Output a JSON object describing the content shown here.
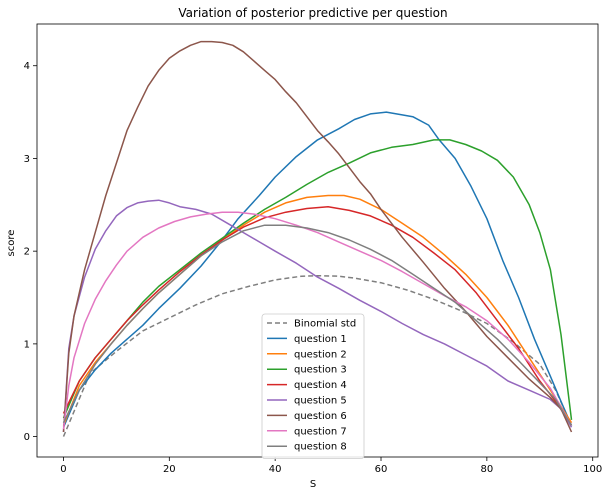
{
  "chart_data": {
    "type": "line",
    "title": "Variation of posterior predictive per question",
    "xlabel": "S",
    "ylabel": "score",
    "xlim": [
      -5,
      101
    ],
    "ylim": [
      -0.22,
      4.45
    ],
    "xticks": [
      "0",
      "20",
      "40",
      "60",
      "80",
      "100"
    ],
    "yticks": [
      "0",
      "1",
      "2",
      "3",
      "4"
    ],
    "grid": false,
    "legend_position": "lower-center",
    "series": [
      {
        "name": "Binomial std",
        "color": "#7f7f7f",
        "dashed": true,
        "x": [
          0,
          5,
          10,
          15,
          20,
          25,
          30,
          35,
          40,
          45,
          48,
          52,
          55,
          60,
          65,
          70,
          75,
          80,
          85,
          90,
          93,
          96
        ],
        "y": [
          0.0,
          0.68,
          0.92,
          1.14,
          1.28,
          1.42,
          1.54,
          1.62,
          1.69,
          1.73,
          1.735,
          1.73,
          1.71,
          1.66,
          1.58,
          1.48,
          1.36,
          1.22,
          1.02,
          0.78,
          0.5,
          0.12
        ]
      },
      {
        "name": "question 1",
        "color": "#1f77b4",
        "x": [
          0,
          3,
          6,
          9,
          12,
          15,
          18,
          22,
          26,
          30,
          33,
          37,
          40,
          44,
          48,
          52,
          55,
          58,
          61,
          64,
          66,
          69,
          71,
          74,
          77,
          80,
          83,
          86,
          89,
          92,
          94,
          96
        ],
        "y": [
          0.1,
          0.5,
          0.72,
          0.9,
          1.05,
          1.2,
          1.38,
          1.6,
          1.84,
          2.12,
          2.35,
          2.6,
          2.8,
          3.02,
          3.2,
          3.32,
          3.42,
          3.48,
          3.5,
          3.47,
          3.45,
          3.36,
          3.2,
          3.0,
          2.7,
          2.35,
          1.9,
          1.5,
          1.05,
          0.65,
          0.38,
          0.12
        ]
      },
      {
        "name": "question 2",
        "color": "#ff7f0e",
        "x": [
          0,
          3,
          6,
          9,
          12,
          15,
          18,
          22,
          26,
          30,
          34,
          38,
          42,
          46,
          50,
          53,
          56,
          60,
          64,
          68,
          72,
          76,
          80,
          84,
          88,
          92,
          96
        ],
        "y": [
          0.12,
          0.55,
          0.8,
          1.0,
          1.2,
          1.38,
          1.55,
          1.75,
          1.95,
          2.12,
          2.28,
          2.42,
          2.52,
          2.58,
          2.6,
          2.6,
          2.56,
          2.45,
          2.3,
          2.15,
          1.96,
          1.75,
          1.5,
          1.2,
          0.85,
          0.5,
          0.15
        ]
      },
      {
        "name": "question 3",
        "color": "#2ca02c",
        "x": [
          0,
          3,
          6,
          9,
          12,
          15,
          18,
          22,
          26,
          30,
          34,
          38,
          42,
          46,
          50,
          54,
          58,
          62,
          66,
          70,
          73,
          76,
          79,
          82,
          85,
          88,
          90,
          92,
          94,
          96
        ],
        "y": [
          0.2,
          0.6,
          0.85,
          1.05,
          1.25,
          1.45,
          1.62,
          1.8,
          1.98,
          2.14,
          2.3,
          2.45,
          2.58,
          2.72,
          2.85,
          2.95,
          3.06,
          3.12,
          3.15,
          3.2,
          3.2,
          3.15,
          3.08,
          2.98,
          2.8,
          2.5,
          2.2,
          1.8,
          1.1,
          0.18
        ]
      },
      {
        "name": "question 4",
        "color": "#d62728",
        "x": [
          0,
          3,
          6,
          9,
          12,
          15,
          18,
          22,
          26,
          30,
          34,
          38,
          42,
          46,
          50,
          54,
          58,
          62,
          66,
          70,
          74,
          78,
          82,
          86,
          90,
          93,
          96
        ],
        "y": [
          0.25,
          0.6,
          0.85,
          1.05,
          1.25,
          1.42,
          1.58,
          1.78,
          1.96,
          2.12,
          2.26,
          2.36,
          2.42,
          2.46,
          2.48,
          2.44,
          2.38,
          2.28,
          2.15,
          1.98,
          1.8,
          1.55,
          1.25,
          0.95,
          0.6,
          0.38,
          0.12
        ]
      },
      {
        "name": "question 5",
        "color": "#9467bd",
        "x": [
          0,
          1,
          2,
          4,
          6,
          8,
          10,
          12,
          14,
          16,
          18,
          20,
          22,
          25,
          28,
          31,
          34,
          37,
          40,
          44,
          48,
          52,
          56,
          60,
          64,
          68,
          72,
          76,
          80,
          84,
          88,
          92,
          94,
          96
        ],
        "y": [
          0.05,
          0.95,
          1.3,
          1.72,
          2.02,
          2.22,
          2.38,
          2.47,
          2.52,
          2.54,
          2.55,
          2.52,
          2.48,
          2.45,
          2.4,
          2.3,
          2.2,
          2.1,
          2.0,
          1.87,
          1.72,
          1.6,
          1.47,
          1.35,
          1.22,
          1.1,
          1.0,
          0.88,
          0.76,
          0.6,
          0.5,
          0.4,
          0.3,
          0.1
        ]
      },
      {
        "name": "question 6",
        "color": "#8c564b",
        "x": [
          0,
          1,
          2,
          4,
          6,
          8,
          10,
          12,
          14,
          16,
          18,
          20,
          22,
          24,
          26,
          28,
          30,
          32,
          34,
          36,
          38,
          40,
          42,
          44,
          46,
          48,
          50,
          52,
          54,
          56,
          58,
          60,
          64,
          68,
          72,
          76,
          80,
          84,
          88,
          92,
          94,
          96
        ],
        "y": [
          0.05,
          0.9,
          1.3,
          1.8,
          2.2,
          2.6,
          2.95,
          3.3,
          3.55,
          3.78,
          3.95,
          4.08,
          4.16,
          4.22,
          4.26,
          4.26,
          4.25,
          4.22,
          4.15,
          4.05,
          3.95,
          3.85,
          3.72,
          3.6,
          3.45,
          3.3,
          3.18,
          3.05,
          2.9,
          2.75,
          2.62,
          2.45,
          2.15,
          1.88,
          1.6,
          1.35,
          1.08,
          0.85,
          0.62,
          0.42,
          0.3,
          0.05
        ]
      },
      {
        "name": "question 7",
        "color": "#e377c2",
        "x": [
          0,
          1,
          2,
          4,
          6,
          8,
          10,
          12,
          15,
          18,
          21,
          24,
          27,
          30,
          33,
          36,
          40,
          44,
          48,
          52,
          56,
          60,
          64,
          68,
          72,
          76,
          80,
          84,
          88,
          92,
          96
        ],
        "y": [
          0.08,
          0.55,
          0.85,
          1.22,
          1.48,
          1.68,
          1.85,
          2.0,
          2.15,
          2.25,
          2.32,
          2.37,
          2.4,
          2.42,
          2.42,
          2.4,
          2.35,
          2.28,
          2.2,
          2.1,
          2.0,
          1.9,
          1.78,
          1.65,
          1.52,
          1.4,
          1.25,
          1.05,
          0.8,
          0.52,
          0.12
        ]
      },
      {
        "name": "question 8",
        "color": "#7f7f7f",
        "x": [
          0,
          3,
          6,
          9,
          12,
          15,
          18,
          22,
          26,
          30,
          34,
          38,
          42,
          46,
          50,
          54,
          58,
          62,
          66,
          70,
          74,
          78,
          82,
          86,
          90,
          93,
          96
        ],
        "y": [
          0.15,
          0.5,
          0.78,
          1.0,
          1.2,
          1.38,
          1.55,
          1.75,
          1.95,
          2.1,
          2.22,
          2.28,
          2.28,
          2.25,
          2.2,
          2.12,
          2.02,
          1.9,
          1.75,
          1.6,
          1.45,
          1.25,
          1.05,
          0.82,
          0.58,
          0.4,
          0.12
        ]
      }
    ]
  }
}
